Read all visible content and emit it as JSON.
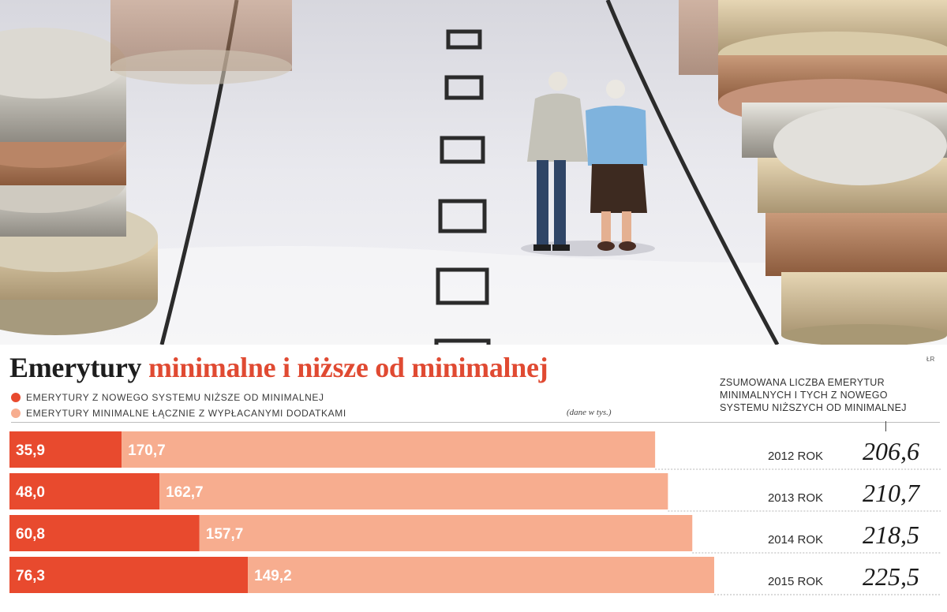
{
  "title_part1": "Emerytury",
  "title_part2": "minimalne i niższe od minimalnej",
  "credit": "ŁR",
  "legend": [
    {
      "label": "EMERYTURY Z NOWEGO SYSTEMU NIŻSZE OD MINIMALNEJ",
      "color": "#e84a2e"
    },
    {
      "label": "EMERYTURY MINIMALNE ŁĄCZNIE Z WYPŁACANYMI DODATKAMI",
      "color": "#f7ad8f"
    }
  ],
  "unit_note": "(dane w tys.)",
  "side_note": "ZSUMOWANA LICZBA EMERYTUR MINIMALNYCH I TYCH Z NOWEGO SYSTEMU NIŻSZYCH OD MINIMALNEJ",
  "chart_data": {
    "type": "bar",
    "orientation": "horizontal",
    "stacked": true,
    "unit": "tys.",
    "categories": [
      "2012 ROK",
      "2013 ROK",
      "2014 ROK",
      "2015 ROK"
    ],
    "series": [
      {
        "name": "EMERYTURY Z NOWEGO SYSTEMU NIŻSZE OD MINIMALNEJ",
        "values": [
          35.9,
          48.0,
          60.8,
          76.3
        ],
        "labels": [
          "35,9",
          "48,0",
          "60,8",
          "76,3"
        ],
        "color": "#e84a2e"
      },
      {
        "name": "EMERYTURY MINIMALNE ŁĄCZNIE Z WYPŁACANYMI DODATKAMI",
        "values": [
          170.7,
          162.7,
          157.7,
          149.2
        ],
        "labels": [
          "170,7",
          "162,7",
          "157,7",
          "149,2"
        ],
        "color": "#f7ad8f"
      }
    ],
    "totals": [
      206.6,
      210.7,
      218.5,
      225.5
    ],
    "total_labels": [
      "206,6",
      "210,7",
      "218,5",
      "225,5"
    ],
    "legend_position": "top-left",
    "grid": false
  }
}
